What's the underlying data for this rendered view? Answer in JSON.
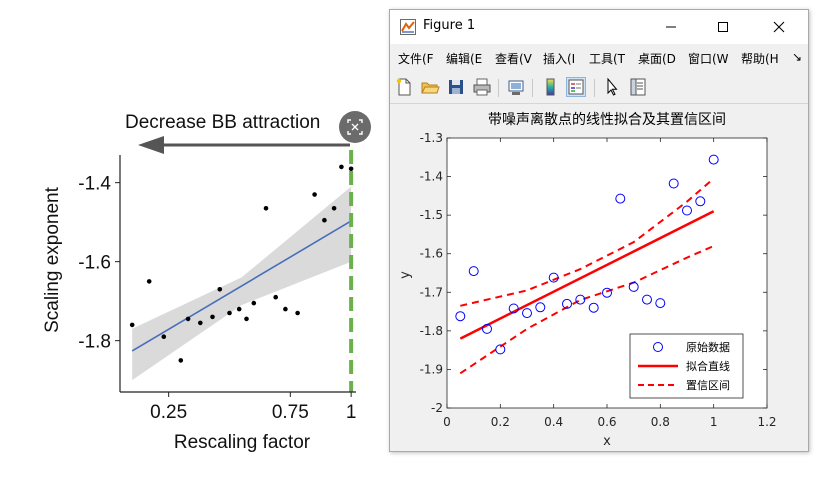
{
  "left_figure": {
    "arrow_label": "Decrease BB attraction",
    "ylabel": "Scaling exponent",
    "xlabel": "Rescaling factor",
    "ytick_labels": [
      "-1.4",
      "-1.6",
      "-1.8"
    ],
    "xtick_labels": [
      "0.25",
      "0.75",
      "1"
    ],
    "colors": {
      "fit_line": "#4a6dbb",
      "band": "#d3d3d3",
      "points": "#000000",
      "dashed_line": "#6ab04c",
      "arrow": "#555555"
    }
  },
  "chart_data": [
    {
      "type": "scatter",
      "xlabel": "Rescaling factor",
      "ylabel": "Scaling exponent",
      "xticks": [
        "0.25",
        "0.75",
        "1"
      ],
      "yticks": [
        "-1.4",
        "-1.6",
        "-1.8"
      ],
      "xlim": [
        0.05,
        1.02
      ],
      "ylim": [
        -1.93,
        -1.33
      ],
      "annotation": "Decrease BB attraction",
      "reference_line_x": 1.0,
      "series": [
        {
          "type": "scatter",
          "x": [
            0.1,
            0.17,
            0.23,
            0.3,
            0.33,
            0.38,
            0.43,
            0.46,
            0.5,
            0.54,
            0.57,
            0.6,
            0.65,
            0.69,
            0.73,
            0.78,
            0.85,
            0.89,
            0.93,
            0.96,
            1.0
          ],
          "y": [
            -1.76,
            -1.65,
            -1.79,
            -1.85,
            -1.745,
            -1.755,
            -1.74,
            -1.67,
            -1.73,
            -1.72,
            -1.745,
            -1.705,
            -1.465,
            -1.69,
            -1.72,
            -1.73,
            -1.43,
            -1.495,
            -1.465,
            -1.36,
            -1.365
          ]
        },
        {
          "type": "line",
          "x": [
            0.1,
            1.0
          ],
          "y": [
            -1.826,
            -1.497
          ]
        },
        {
          "type": "area",
          "x": [
            0.1,
            0.55,
            1.0
          ],
          "upper": [
            -1.77,
            -1.64,
            -1.41
          ],
          "lower": [
            -1.9,
            -1.71,
            -1.6
          ]
        }
      ]
    },
    {
      "type": "scatter",
      "title": "带噪声离散点的线性拟合及其置信区间",
      "xlabel": "x",
      "ylabel": "y",
      "xlim": [
        0,
        1.2
      ],
      "ylim": [
        -2,
        -1.3
      ],
      "xticks": [
        "0",
        "0.2",
        "0.4",
        "0.6",
        "0.8",
        "1",
        "1.2"
      ],
      "yticks": [
        "-1.3",
        "-1.4",
        "-1.5",
        "-1.6",
        "-1.7",
        "-1.8",
        "-1.9",
        "-2"
      ],
      "legend": [
        "原始数据",
        "拟合直线",
        "置信区间"
      ],
      "legend_position": "bottom-right",
      "series": [
        {
          "name": "原始数据",
          "type": "scatter",
          "x": [
            0.05,
            0.1,
            0.15,
            0.2,
            0.25,
            0.3,
            0.35,
            0.4,
            0.45,
            0.5,
            0.55,
            0.6,
            0.65,
            0.7,
            0.75,
            0.8,
            0.85,
            0.9,
            0.95,
            1.0
          ],
          "y": [
            -1.762,
            -1.645,
            -1.795,
            -1.848,
            -1.742,
            -1.754,
            -1.739,
            -1.662,
            -1.73,
            -1.719,
            -1.74,
            -1.701,
            -1.457,
            -1.686,
            -1.719,
            -1.728,
            -1.418,
            -1.488,
            -1.464,
            -1.356
          ]
        },
        {
          "name": "拟合直线",
          "type": "line",
          "x": [
            0.05,
            1.0
          ],
          "y": [
            -1.82,
            -1.49
          ]
        },
        {
          "name": "置信区间",
          "type": "line",
          "x": [
            0.05,
            0.3,
            0.5,
            0.7,
            0.9,
            1.0
          ],
          "y": [
            -1.735,
            -1.695,
            -1.64,
            -1.57,
            -1.465,
            -1.405
          ]
        },
        {
          "type": "line",
          "x": [
            0.05,
            0.3,
            0.5,
            0.7,
            0.9,
            1.0
          ],
          "y": [
            -1.91,
            -1.795,
            -1.72,
            -1.675,
            -1.61,
            -1.58
          ]
        }
      ]
    }
  ],
  "window": {
    "title": "Figure 1",
    "controls": {
      "minimize": "minimize",
      "maximize": "maximize",
      "close": "close"
    }
  },
  "menu": [
    "文件(F",
    "编辑(E",
    "查看(V",
    "插入(I",
    "工具(T",
    "桌面(D",
    "窗口(W",
    "帮助(H"
  ],
  "menu_overflow": "↘",
  "toolbar": [
    "new-figure-icon",
    "open-folder-icon",
    "save-icon",
    "print-icon",
    "link-plot-icon",
    "colorbar-icon",
    "legend-icon",
    "pointer-icon",
    "property-inspector-icon"
  ],
  "colors": {
    "window_bg": "#f0f0f0",
    "fit": "#ff0000",
    "markers": "#0000ff",
    "axes": "#262626"
  }
}
